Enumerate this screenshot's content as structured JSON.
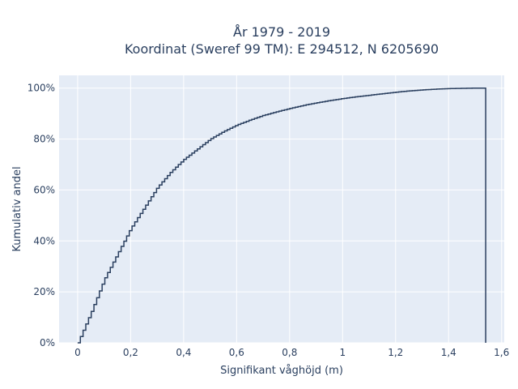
{
  "chart_data": {
    "type": "line",
    "title": "År 1979 - 2019",
    "subtitle": "Koordinat (Sweref 99 TM): E 294512, N 6205690",
    "xlabel": "Signifikant våghöjd (m)",
    "ylabel": "Kumulativ andel",
    "xlim": [
      -0.07,
      1.61
    ],
    "ylim": [
      0,
      1.05
    ],
    "x_ticks": [
      0,
      0.2,
      0.4,
      0.6,
      0.8,
      1,
      1.2,
      1.4,
      1.6
    ],
    "x_tick_labels": [
      "0",
      "0,2",
      "0,4",
      "0,6",
      "0,8",
      "1",
      "1,2",
      "1,4",
      "1,6"
    ],
    "y_ticks": [
      0,
      0.2,
      0.4,
      0.6,
      0.8,
      1
    ],
    "y_tick_labels": [
      "0%",
      "20%",
      "40%",
      "60%",
      "80%",
      "100%"
    ],
    "grid": true,
    "legend": "none",
    "colors": {
      "line": "#2a3f5f",
      "plot_bg": "#e5ecf6",
      "grid": "#ffffff"
    },
    "series": [
      {
        "x": [
          0,
          0.05,
          0.1,
          0.15,
          0.2,
          0.25,
          0.3,
          0.35,
          0.4,
          0.45,
          0.5,
          0.55,
          0.6,
          0.65,
          0.7,
          0.75,
          0.8,
          0.85,
          0.9,
          0.95,
          1.0,
          1.05,
          1.1,
          1.15,
          1.2,
          1.25,
          1.3,
          1.35,
          1.4,
          1.45,
          1.5,
          1.54
        ],
        "y": [
          0,
          0.12,
          0.25,
          0.35,
          0.45,
          0.53,
          0.61,
          0.67,
          0.72,
          0.76,
          0.8,
          0.83,
          0.855,
          0.875,
          0.893,
          0.907,
          0.92,
          0.932,
          0.942,
          0.951,
          0.959,
          0.966,
          0.972,
          0.978,
          0.984,
          0.989,
          0.993,
          0.996,
          0.998,
          0.999,
          1.0,
          1.0
        ]
      }
    ]
  }
}
